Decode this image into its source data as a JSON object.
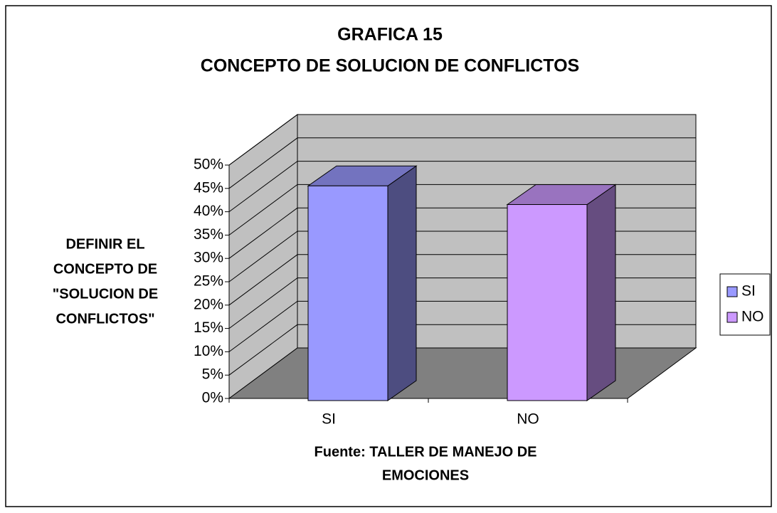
{
  "chart_data": {
    "type": "bar3d",
    "title": [
      "GRAFICA 15",
      "CONCEPTO DE SOLUCION DE CONFLICTOS"
    ],
    "y_label": [
      "DEFINIR EL",
      "CONCEPTO DE",
      "\"SOLUCION DE",
      "CONFLICTOS\""
    ],
    "x_label": [
      "Fuente: TALLER DE MANEJO DE",
      "EMOCIONES"
    ],
    "categories": [
      "SI",
      "NO"
    ],
    "values": [
      46,
      42
    ],
    "colors": [
      "#9999ff",
      "#cc99ff"
    ],
    "ylim": [
      0,
      50
    ],
    "yticks": [
      {
        "value": 0,
        "label": "0%"
      },
      {
        "value": 5,
        "label": "5%"
      },
      {
        "value": 10,
        "label": "10%"
      },
      {
        "value": 15,
        "label": "15%"
      },
      {
        "value": 20,
        "label": "20%"
      },
      {
        "value": 25,
        "label": "25%"
      },
      {
        "value": 30,
        "label": "30%"
      },
      {
        "value": 35,
        "label": "35%"
      },
      {
        "value": 40,
        "label": "40%"
      },
      {
        "value": 45,
        "label": "45%"
      },
      {
        "value": 50,
        "label": "50%"
      }
    ],
    "grid": true,
    "legend": "right"
  }
}
